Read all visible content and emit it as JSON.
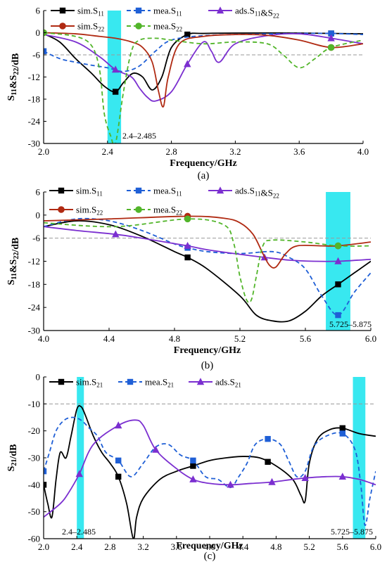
{
  "colors": {
    "sim_s11": "#000000",
    "mea_s11": "#1f5fd6",
    "ads": "#7b2fd0",
    "sim_s22": "#b02a12",
    "mea_s22": "#52b52a",
    "ref_line": "#9a9a9a",
    "band": "#22e6ee"
  },
  "chart_data": [
    {
      "type": "line",
      "panel_label": "(a)",
      "xlabel": "Frequency/GHz",
      "ylabel": "S11&S22/dB",
      "xlim": [
        2.0,
        4.0
      ],
      "ylim": [
        -30,
        6
      ],
      "xticks": [
        "2.0",
        "2.4",
        "2.8",
        "3.2",
        "3.6",
        "4.0"
      ],
      "yticks": [
        "6",
        "0",
        "-6",
        "-12",
        "-18",
        "-24",
        "-30"
      ],
      "reference_line_db": -6,
      "bands": [
        {
          "from": 2.4,
          "to": 2.485,
          "label": "2.4–2.485"
        }
      ],
      "series": [
        {
          "name": "sim.S11",
          "key": "sim_s11",
          "style": "solid",
          "marker": "square",
          "x": [
            2.0,
            2.1,
            2.2,
            2.3,
            2.38,
            2.45,
            2.5,
            2.56,
            2.62,
            2.68,
            2.74,
            2.8,
            2.9,
            3.0,
            3.2,
            3.6,
            4.0
          ],
          "y": [
            -0.3,
            -2.5,
            -7,
            -11,
            -14.5,
            -16,
            -13.5,
            -11,
            -12,
            -15.5,
            -12,
            -4,
            -0.5,
            -0.2,
            -0.1,
            -0.1,
            -0.3
          ],
          "marker_x": [
            2.45,
            2.9,
            3.8
          ]
        },
        {
          "name": "mea.S11",
          "key": "mea_s11",
          "style": "dash",
          "marker": "square",
          "x": [
            2.0,
            2.1,
            2.2,
            2.3,
            2.4,
            2.5,
            2.6,
            2.7,
            2.8,
            3.0,
            3.3,
            3.6,
            3.8,
            4.0
          ],
          "y": [
            -5,
            -7,
            -8,
            -8.8,
            -9.5,
            -10.5,
            -9,
            -5,
            -2,
            -0.8,
            -0.4,
            -0.2,
            -0.2,
            -0.5
          ],
          "marker_x": [
            2.0,
            3.8
          ]
        },
        {
          "name": "ads.S11&S22",
          "key": "ads",
          "style": "solid",
          "marker": "triangle",
          "x": [
            2.0,
            2.2,
            2.35,
            2.45,
            2.55,
            2.6,
            2.65,
            2.7,
            2.8,
            2.9,
            3.0,
            3.05,
            3.1,
            3.2,
            3.4,
            3.6,
            3.8,
            4.0
          ],
          "y": [
            -0.5,
            -2.5,
            -6.5,
            -10,
            -12,
            -15,
            -17.5,
            -18.5,
            -16,
            -8.5,
            -2.5,
            -5,
            -8,
            -3,
            -0.8,
            -0.3,
            -1.5,
            -3
          ],
          "marker_x": [
            2.45,
            2.9,
            3.8
          ]
        },
        {
          "name": "sim.S22",
          "key": "sim_s22",
          "style": "solid",
          "marker": "circle",
          "x": [
            2.0,
            2.2,
            2.35,
            2.45,
            2.55,
            2.62,
            2.68,
            2.72,
            2.75,
            2.78,
            2.85,
            3.0,
            3.2,
            3.4,
            3.6,
            3.8,
            4.0
          ],
          "y": [
            0,
            -0.3,
            -1,
            -1.5,
            -2.5,
            -4,
            -8,
            -16,
            -20,
            -12,
            -3,
            -1,
            -0.5,
            -0.7,
            -2,
            -4,
            -3
          ],
          "marker_x": [
            2.0,
            3.8
          ]
        },
        {
          "name": "mea.S22",
          "key": "mea_s22",
          "style": "dash",
          "marker": "circle",
          "x": [
            2.0,
            2.2,
            2.3,
            2.35,
            2.38,
            2.42,
            2.45,
            2.5,
            2.55,
            2.6,
            2.7,
            2.8,
            3.0,
            3.2,
            3.4,
            3.5,
            3.6,
            3.7,
            3.8,
            4.0
          ],
          "y": [
            0,
            -1,
            -3.5,
            -10,
            -22,
            -28,
            -30,
            -16,
            -5,
            -2,
            -1.5,
            -2,
            -3,
            -2.5,
            -3,
            -6,
            -9.5,
            -7,
            -4,
            -2
          ],
          "marker_x": [
            2.0,
            3.8
          ]
        }
      ]
    },
    {
      "type": "line",
      "panel_label": "(b)",
      "xlabel": "Frequency/GHz",
      "ylabel": "S11&S22/dB",
      "xlim": [
        4.0,
        6.0
      ],
      "ylim": [
        -30,
        6
      ],
      "xticks": [
        "4.0",
        "4.4",
        "4.8",
        "5.2",
        "5.6",
        "6.0"
      ],
      "yticks": [
        "6",
        "0",
        "-6",
        "-12",
        "-18",
        "-24",
        "-30"
      ],
      "reference_line_db": -6,
      "bands": [
        {
          "from": 5.725,
          "to": 5.875,
          "label": "5.725–5.875"
        }
      ],
      "series": [
        {
          "name": "sim.S11",
          "key": "sim_s11",
          "style": "solid",
          "marker": "square",
          "x": [
            4.0,
            4.2,
            4.4,
            4.6,
            4.8,
            4.88,
            5.0,
            5.2,
            5.3,
            5.4,
            5.5,
            5.6,
            5.7,
            5.8,
            5.9,
            6.0
          ],
          "y": [
            -3,
            -1.5,
            -2.5,
            -5.5,
            -9.5,
            -11,
            -14,
            -21,
            -26,
            -27.5,
            -27.5,
            -25,
            -21,
            -18,
            -15,
            -12
          ],
          "marker_x": [
            4.88,
            5.8
          ]
        },
        {
          "name": "mea.S11",
          "key": "mea_s11",
          "style": "dash",
          "marker": "square",
          "x": [
            4.0,
            4.2,
            4.4,
            4.6,
            4.8,
            4.88,
            5.0,
            5.2,
            5.4,
            5.5,
            5.6,
            5.7,
            5.8,
            5.9,
            6.0
          ],
          "y": [
            -3,
            -1,
            -1.5,
            -4,
            -7.5,
            -8.5,
            -9.5,
            -10,
            -9.5,
            -11,
            -14,
            -21,
            -26,
            -20,
            -15
          ],
          "marker_x": [
            4.88,
            5.8
          ]
        },
        {
          "name": "ads.S11&S22",
          "key": "ads",
          "style": "solid",
          "marker": "triangle",
          "x": [
            4.0,
            4.2,
            4.44,
            4.6,
            4.88,
            5.0,
            5.2,
            5.35,
            5.5,
            5.65,
            5.8,
            6.0
          ],
          "y": [
            -3,
            -4,
            -5,
            -6,
            -8,
            -9,
            -10.2,
            -11,
            -11.7,
            -12,
            -12,
            -11.5
          ],
          "marker_x": [
            4.44,
            4.88,
            5.35,
            5.8
          ]
        },
        {
          "name": "sim.S22",
          "key": "sim_s22",
          "style": "solid",
          "marker": "circle",
          "x": [
            4.0,
            4.4,
            4.88,
            5.1,
            5.2,
            5.28,
            5.34,
            5.38,
            5.42,
            5.48,
            5.55,
            5.7,
            5.8,
            6.0
          ],
          "y": [
            -1.5,
            -1,
            -0.3,
            -0.8,
            -2,
            -5,
            -10,
            -13,
            -13.5,
            -10,
            -8,
            -8,
            -8,
            -7
          ],
          "marker_x": [
            4.88,
            5.8
          ]
        },
        {
          "name": "mea.S22",
          "key": "mea_s22",
          "style": "dash",
          "marker": "circle",
          "x": [
            4.0,
            4.44,
            4.88,
            5.1,
            5.16,
            5.2,
            5.24,
            5.27,
            5.3,
            5.34,
            5.4,
            5.6,
            5.8,
            6.0
          ],
          "y": [
            -2,
            -3,
            -1,
            -2.5,
            -7,
            -16,
            -22,
            -22,
            -16,
            -8,
            -6.5,
            -7,
            -8,
            -8
          ],
          "marker_x": [
            4.88,
            5.8
          ]
        }
      ]
    },
    {
      "type": "line",
      "panel_label": "(c)",
      "xlabel": "Frequency/GHz",
      "ylabel": "S21/dB",
      "xlim": [
        2.0,
        6.0
      ],
      "ylim": [
        -60,
        0
      ],
      "xticks": [
        "2.0",
        "2.4",
        "2.8",
        "3.2",
        "3.6",
        "4.0",
        "4.4",
        "4.8",
        "5.2",
        "5.6",
        "6.0"
      ],
      "yticks": [
        "0",
        "-10",
        "-20",
        "-30",
        "-40",
        "-50",
        "-60"
      ],
      "reference_line_db": -10,
      "bands": [
        {
          "from": 2.4,
          "to": 2.485,
          "label": "2.4–2.485"
        },
        {
          "from": 5.725,
          "to": 5.875,
          "label": "5.725–5.875"
        }
      ],
      "series": [
        {
          "name": "sim.S21",
          "key": "sim_s21",
          "color_key": "sim_s11",
          "style": "solid",
          "marker": "square",
          "x": [
            2.0,
            2.05,
            2.1,
            2.15,
            2.2,
            2.27,
            2.33,
            2.4,
            2.45,
            2.5,
            2.6,
            2.7,
            2.8,
            2.9,
            3.0,
            3.08,
            3.12,
            3.2,
            3.4,
            3.6,
            3.8,
            4.0,
            4.2,
            4.4,
            4.6,
            4.8,
            5.0,
            5.1,
            5.15,
            5.2,
            5.3,
            5.45,
            5.6,
            5.8,
            6.0
          ],
          "y": [
            -40,
            -47,
            -52,
            -38,
            -28,
            -30,
            -22,
            -12,
            -11,
            -14,
            -22,
            -28,
            -32,
            -37,
            -47,
            -60,
            -52,
            -45,
            -38,
            -35,
            -33,
            -31,
            -30,
            -29.5,
            -30,
            -33,
            -38,
            -44,
            -46,
            -32,
            -23,
            -19.5,
            -19,
            -21,
            -22
          ],
          "marker_x": [
            2.0,
            2.9,
            3.8,
            4.7,
            5.6
          ]
        },
        {
          "name": "mea.S21",
          "key": "mea_s21",
          "color_key": "mea_s11",
          "style": "dash",
          "marker": "square",
          "x": [
            2.0,
            2.07,
            2.15,
            2.25,
            2.35,
            2.45,
            2.55,
            2.65,
            2.75,
            2.9,
            3.05,
            3.2,
            3.35,
            3.5,
            3.65,
            3.8,
            3.95,
            4.1,
            4.25,
            4.35,
            4.45,
            4.55,
            4.7,
            4.85,
            4.95,
            5.05,
            5.15,
            5.25,
            5.4,
            5.6,
            5.75,
            5.82,
            5.87,
            5.93,
            6.0
          ],
          "y": [
            -35,
            -28,
            -20,
            -16,
            -15,
            -16,
            -19,
            -22,
            -28,
            -31,
            -37,
            -32,
            -26,
            -25,
            -29,
            -31,
            -37,
            -38,
            -41,
            -37,
            -32,
            -25,
            -23,
            -25,
            -31,
            -37,
            -35,
            -26,
            -22,
            -21,
            -27,
            -40,
            -55,
            -45,
            -35
          ],
          "marker_x": [
            2.0,
            2.9,
            3.8,
            4.7,
            5.6
          ]
        },
        {
          "name": "ads.S21",
          "key": "ads_s21",
          "color_key": "ads",
          "style": "solid",
          "marker": "triangle",
          "x": [
            2.0,
            2.2,
            2.3,
            2.43,
            2.6,
            2.9,
            3.1,
            3.2,
            3.35,
            3.6,
            3.8,
            4.0,
            4.25,
            4.5,
            4.75,
            5.0,
            5.15,
            5.4,
            5.6,
            5.8,
            6.0
          ],
          "y": [
            -52,
            -47,
            -43,
            -36,
            -25,
            -18,
            -16,
            -18,
            -27,
            -34,
            -38,
            -39.5,
            -40,
            -39.5,
            -39,
            -38,
            -37.5,
            -37,
            -37,
            -38,
            -40
          ],
          "marker_x": [
            2.43,
            2.9,
            3.35,
            3.8,
            4.25,
            4.75,
            5.15,
            5.6
          ]
        }
      ]
    }
  ]
}
